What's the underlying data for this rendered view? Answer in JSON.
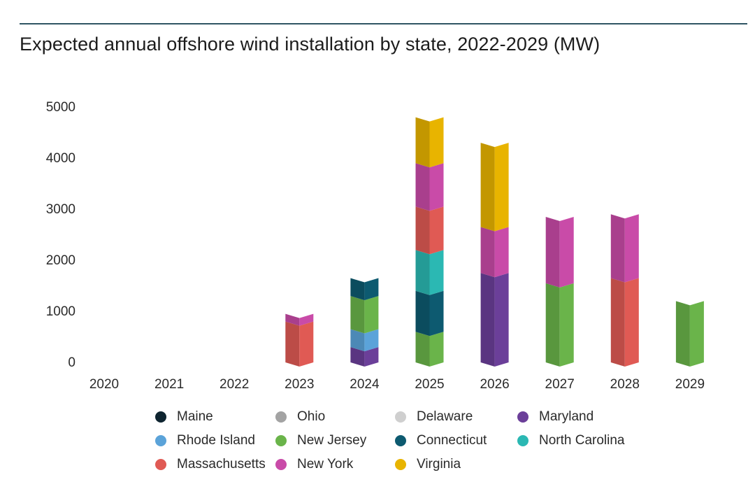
{
  "chart_data": {
    "type": "bar",
    "stacked": true,
    "title": "Expected annual offshore wind installation by state, 2022-2029 (MW)",
    "xlabel": "",
    "ylabel": "",
    "categories": [
      "2020",
      "2021",
      "2022",
      "2023",
      "2024",
      "2025",
      "2026",
      "2027",
      "2028",
      "2029"
    ],
    "ylim": [
      0,
      5000
    ],
    "yticks": [
      0,
      1000,
      2000,
      3000,
      4000,
      5000
    ],
    "grid": false,
    "legend_position": "bottom",
    "series": [
      {
        "name": "Maine",
        "color": "#0e2430",
        "values": [
          0,
          0,
          0,
          0,
          0,
          0,
          0,
          0,
          0,
          0
        ]
      },
      {
        "name": "Ohio",
        "color": "#a3a3a3",
        "values": [
          0,
          0,
          0,
          0,
          0,
          0,
          0,
          0,
          0,
          0
        ]
      },
      {
        "name": "Delaware",
        "color": "#cfcfcf",
        "values": [
          0,
          0,
          0,
          0,
          0,
          0,
          0,
          0,
          0,
          0
        ]
      },
      {
        "name": "Maryland",
        "color": "#6b3f99",
        "values": [
          0,
          0,
          0,
          0,
          300,
          0,
          1750,
          0,
          0,
          0
        ]
      },
      {
        "name": "Rhode Island",
        "color": "#5ba3d9",
        "values": [
          0,
          0,
          0,
          0,
          350,
          0,
          0,
          0,
          0,
          0
        ]
      },
      {
        "name": "New Jersey",
        "color": "#6ab44a",
        "values": [
          0,
          0,
          0,
          0,
          650,
          600,
          0,
          1550,
          0,
          1200
        ]
      },
      {
        "name": "Connecticut",
        "color": "#0d5a70",
        "values": [
          0,
          0,
          0,
          0,
          350,
          800,
          0,
          0,
          0,
          0
        ]
      },
      {
        "name": "North Carolina",
        "color": "#2bb8b3",
        "values": [
          0,
          0,
          0,
          0,
          0,
          800,
          0,
          0,
          0,
          0
        ]
      },
      {
        "name": "Massachusetts",
        "color": "#e05a54",
        "values": [
          0,
          0,
          0,
          800,
          0,
          850,
          0,
          0,
          1650,
          0
        ]
      },
      {
        "name": "New York",
        "color": "#c94ba8",
        "values": [
          0,
          0,
          0,
          150,
          0,
          850,
          900,
          1300,
          1250,
          0
        ]
      },
      {
        "name": "Virginia",
        "color": "#e8b400",
        "values": [
          0,
          0,
          0,
          0,
          0,
          900,
          1650,
          0,
          0,
          0
        ]
      }
    ]
  }
}
